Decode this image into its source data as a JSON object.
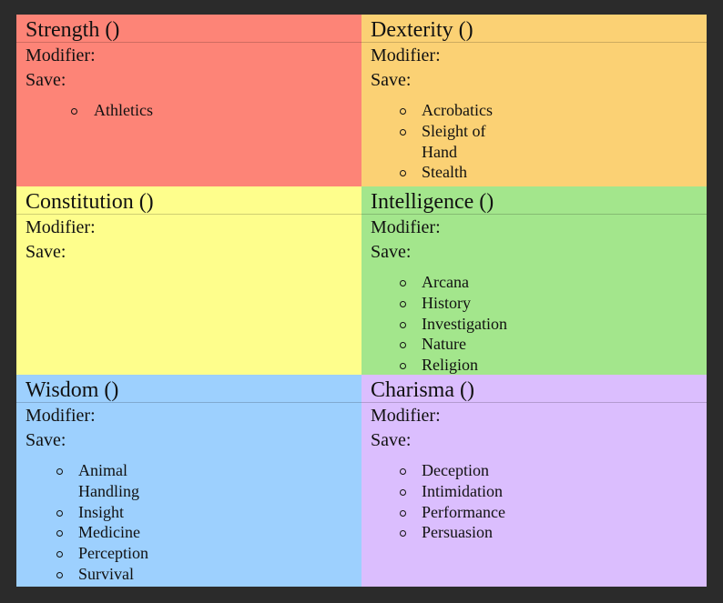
{
  "cells": [
    {
      "title": "Strength ()",
      "modifier": "Modifier:",
      "save": "Save:",
      "skills": [
        "Athletics"
      ]
    },
    {
      "title": "Dexterity ()",
      "modifier": "Modifier:",
      "save": "Save:",
      "skills": [
        "Acrobatics",
        "Sleight of Hand",
        "Stealth"
      ]
    },
    {
      "title": "Constitution ()",
      "modifier": "Modifier:",
      "save": "Save:",
      "skills": []
    },
    {
      "title": "Intelligence ()",
      "modifier": "Modifier:",
      "save": "Save:",
      "skills": [
        "Arcana",
        "History",
        "Investigation",
        "Nature",
        "Religion"
      ]
    },
    {
      "title": "Wisdom ()",
      "modifier": "Modifier:",
      "save": "Save:",
      "skills": [
        "Animal Handling",
        "Insight",
        "Medicine",
        "Perception",
        "Survival"
      ]
    },
    {
      "title": "Charisma ()",
      "modifier": "Modifier:",
      "save": "Save:",
      "skills": [
        "Deception",
        "Intimidation",
        "Performance",
        "Persuasion"
      ]
    }
  ]
}
